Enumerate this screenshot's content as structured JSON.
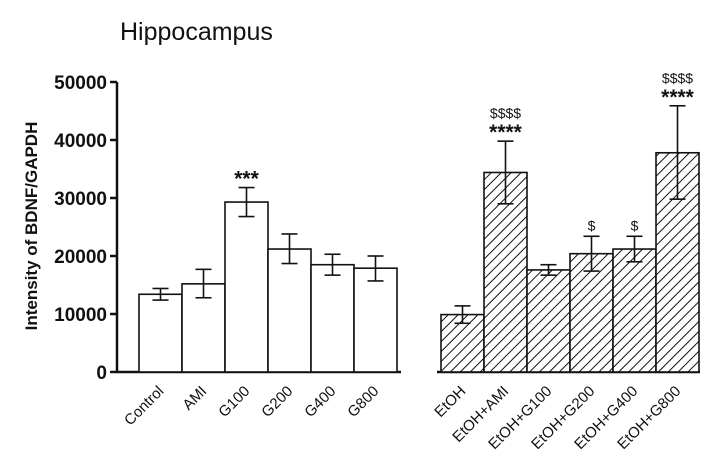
{
  "chart_data": {
    "type": "bar",
    "title": "Hippocampus",
    "xlabel": "",
    "ylabel": "Intensity of BDNF/GAPDH",
    "ylim": [
      0,
      50000
    ],
    "yticks": [
      0,
      10000,
      20000,
      30000,
      40000,
      50000
    ],
    "grid": false,
    "legend": "none",
    "groups": [
      {
        "pattern": "open",
        "bars": [
          {
            "category": "Control",
            "value": 13400,
            "err_low": 12400,
            "err_high": 14400,
            "stars": "",
            "dollars": ""
          },
          {
            "category": "AMI",
            "value": 15200,
            "err_low": 12800,
            "err_high": 17700,
            "stars": "",
            "dollars": ""
          },
          {
            "category": "G100",
            "value": 29300,
            "err_low": 26800,
            "err_high": 31800,
            "stars": "***",
            "dollars": ""
          },
          {
            "category": "G200",
            "value": 21200,
            "err_low": 18700,
            "err_high": 23800,
            "stars": "",
            "dollars": ""
          },
          {
            "category": "G400",
            "value": 18500,
            "err_low": 16700,
            "err_high": 20300,
            "stars": "",
            "dollars": ""
          },
          {
            "category": "G800",
            "value": 17900,
            "err_low": 15700,
            "err_high": 20000,
            "stars": "",
            "dollars": ""
          }
        ]
      },
      {
        "pattern": "hatched",
        "bars": [
          {
            "category": "EtOH",
            "value": 9900,
            "err_low": 8400,
            "err_high": 11400,
            "stars": "",
            "dollars": ""
          },
          {
            "category": "EtOH+AMI",
            "value": 34400,
            "err_low": 29000,
            "err_high": 39800,
            "stars": "****",
            "dollars": "$$$$"
          },
          {
            "category": "EtOH+G100",
            "value": 17600,
            "err_low": 16700,
            "err_high": 18500,
            "stars": "",
            "dollars": ""
          },
          {
            "category": "EtOH+G200",
            "value": 20400,
            "err_low": 17400,
            "err_high": 23400,
            "stars": "",
            "dollars": "$"
          },
          {
            "category": "EtOH+G400",
            "value": 21200,
            "err_low": 19000,
            "err_high": 23400,
            "stars": "",
            "dollars": "$"
          },
          {
            "category": "EtOH+G800",
            "value": 37800,
            "err_low": 29800,
            "err_high": 45900,
            "stars": "****",
            "dollars": "$$$$"
          }
        ]
      }
    ]
  }
}
